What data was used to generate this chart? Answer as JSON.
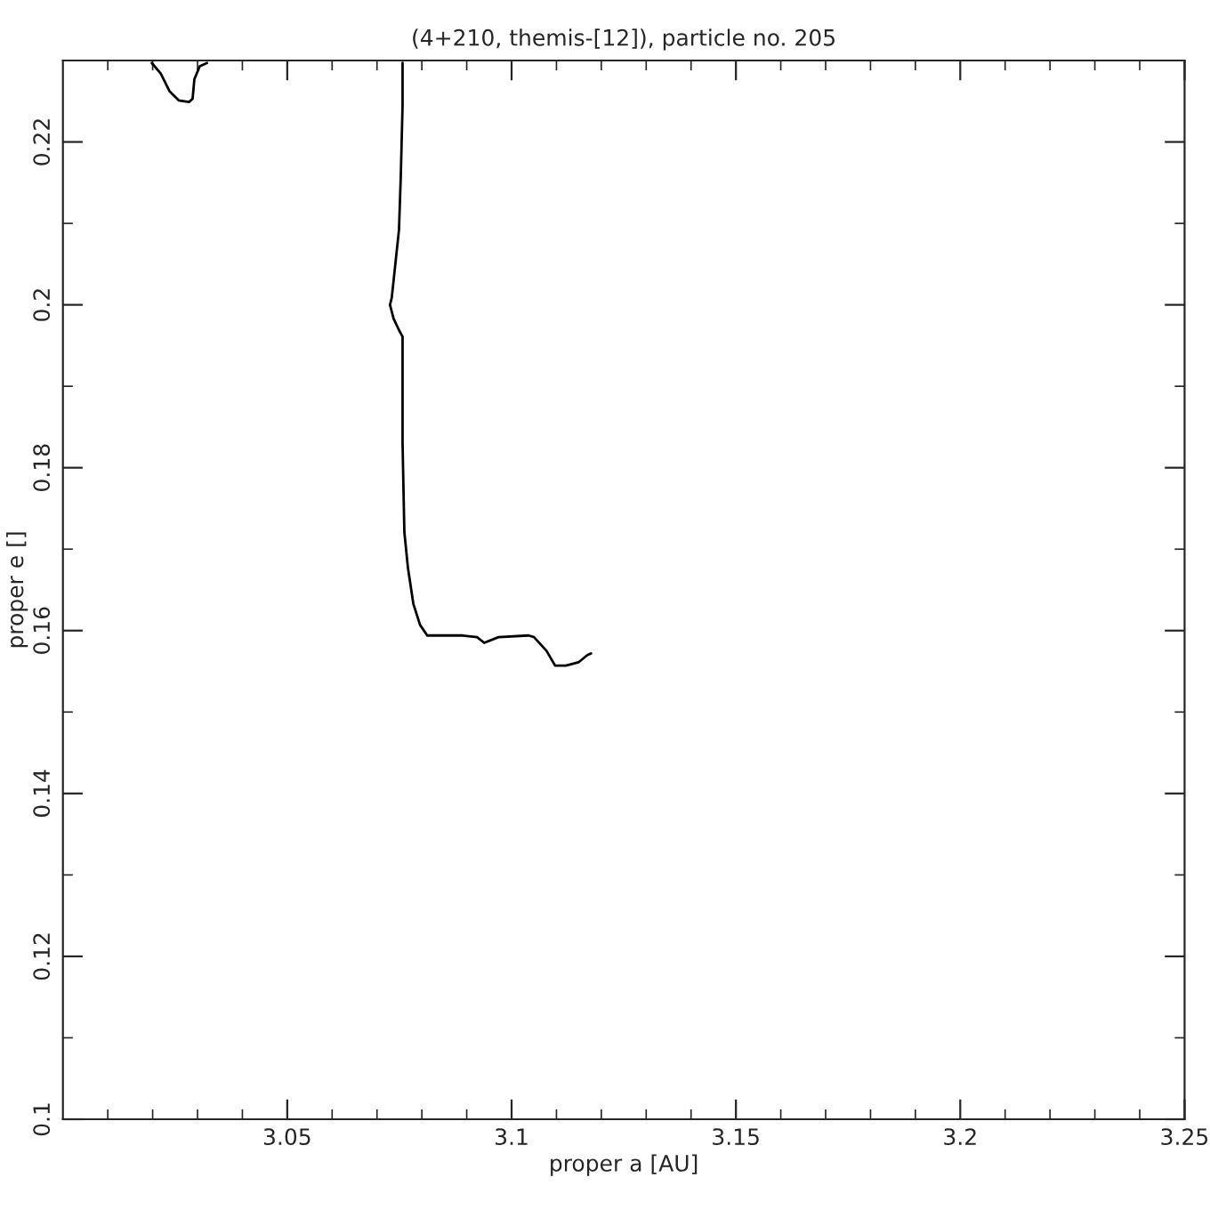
{
  "chart_data": {
    "type": "line",
    "title": "(4+210, themis-[12]), particle no. 205",
    "xlabel": "proper a [AU]",
    "ylabel": "proper e []",
    "xlim": [
      3.0,
      3.25
    ],
    "ylim": [
      0.1,
      0.23
    ],
    "xticks": [
      {
        "value": 3.01,
        "label": null
      },
      {
        "value": 3.02,
        "label": null
      },
      {
        "value": 3.03,
        "label": null
      },
      {
        "value": 3.04,
        "label": null
      },
      3.05,
      {
        "value": 3.06,
        "label": null
      },
      {
        "value": 3.07,
        "label": null
      },
      {
        "value": 3.08,
        "label": null
      },
      {
        "value": 3.09,
        "label": null
      },
      3.1,
      {
        "value": 3.11,
        "label": null
      },
      {
        "value": 3.12,
        "label": null
      },
      {
        "value": 3.13,
        "label": null
      },
      {
        "value": 3.14,
        "label": null
      },
      3.15,
      {
        "value": 3.16,
        "label": null
      },
      {
        "value": 3.17,
        "label": null
      },
      {
        "value": 3.18,
        "label": null
      },
      {
        "value": 3.19,
        "label": null
      },
      3.2,
      {
        "value": 3.21,
        "label": null
      },
      {
        "value": 3.22,
        "label": null
      },
      {
        "value": 3.23,
        "label": null
      },
      {
        "value": 3.24,
        "label": null
      },
      3.25
    ],
    "yticks": [
      0.1,
      {
        "value": 0.11,
        "label": null
      },
      0.12,
      {
        "value": 0.13,
        "label": null
      },
      0.14,
      {
        "value": 0.15,
        "label": null
      },
      0.16,
      {
        "value": 0.17,
        "label": null
      },
      0.18,
      {
        "value": 0.19,
        "label": null
      },
      0.2,
      {
        "value": 0.21,
        "label": null
      },
      0.22
    ],
    "grid": false,
    "line_style": "solid",
    "marker": "none",
    "series": [
      {
        "color": "#000000",
        "x": [
          3.0198,
          3.0218,
          3.0238,
          3.0258,
          3.0281,
          3.0289,
          3.0293,
          3.0305,
          3.0321,
          3.05,
          3.0757,
          3.0757,
          3.0753,
          3.0749,
          3.0733,
          3.0729,
          3.0737,
          3.0749,
          3.0757,
          3.0757,
          3.0761,
          3.0769,
          3.0781,
          3.0796,
          3.0812,
          3.0891,
          3.0923,
          3.0939,
          3.0971,
          3.1038,
          3.105,
          3.1078,
          3.1097,
          3.1121,
          3.1149,
          3.1169,
          3.1177
        ],
        "values": [
          0.2297,
          0.2284,
          0.2262,
          0.2251,
          0.2249,
          0.2253,
          0.2277,
          0.2293,
          0.2297,
          null,
          0.2297,
          0.2245,
          0.2157,
          0.2092,
          0.2009,
          0.2,
          0.1983,
          0.1969,
          0.1961,
          0.183,
          0.1721,
          0.1677,
          0.1633,
          0.1607,
          0.1594,
          0.1594,
          0.1592,
          0.1585,
          0.1592,
          0.1594,
          0.1592,
          0.1575,
          0.1557,
          0.1557,
          0.1561,
          0.157,
          0.1572
        ]
      }
    ]
  }
}
